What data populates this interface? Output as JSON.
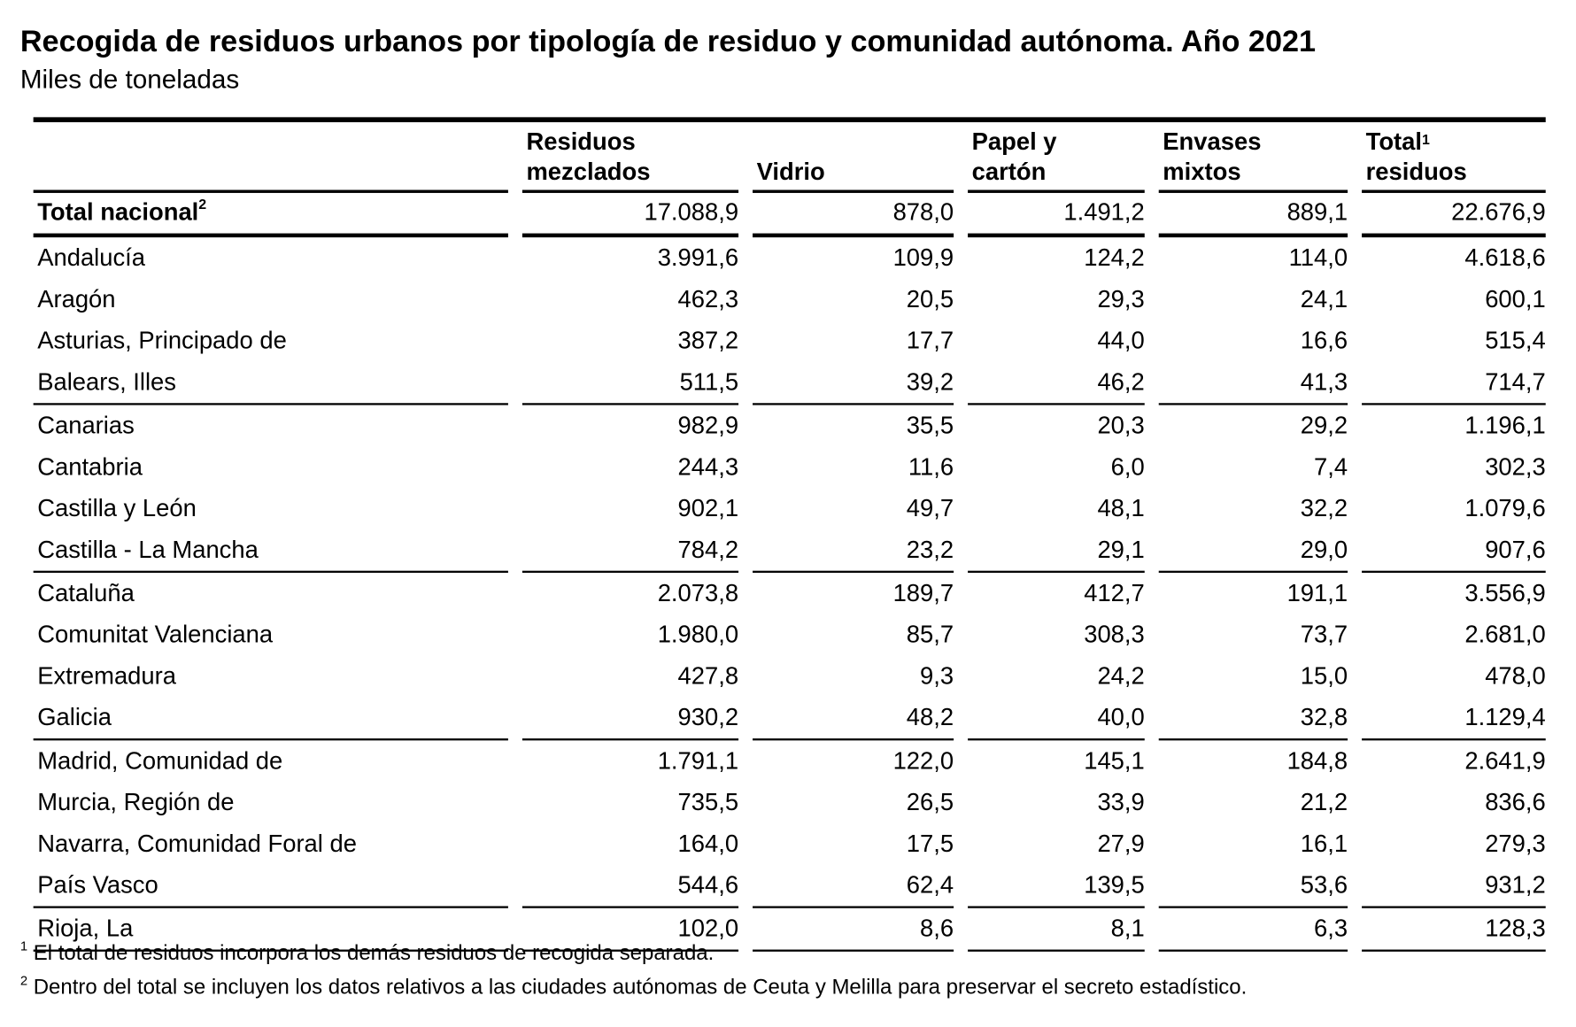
{
  "title": "Recogida de residuos urbanos por tipología de residuo y comunidad autónoma. Año 2021",
  "subtitle": "Miles de toneladas",
  "columns": [
    {
      "line1": "Residuos",
      "line2": "mezclados",
      "sup": ""
    },
    {
      "line1": "Vidrio",
      "line2": "",
      "sup": ""
    },
    {
      "line1": "Papel y",
      "line2": "cartón",
      "sup": ""
    },
    {
      "line1": "Envases",
      "line2": "mixtos",
      "sup": ""
    },
    {
      "line1": "Total",
      "line2": "residuos",
      "sup": "1"
    }
  ],
  "total": {
    "label": "Total nacional",
    "sup": "2",
    "values": [
      "17.088,9",
      "878,0",
      "1.491,2",
      "889,1",
      "22.676,9"
    ]
  },
  "rows": [
    {
      "label": "Andalucía",
      "values": [
        "3.991,6",
        "109,9",
        "124,2",
        "114,0",
        "4.618,6"
      ]
    },
    {
      "label": "Aragón",
      "values": [
        "462,3",
        "20,5",
        "29,3",
        "24,1",
        "600,1"
      ]
    },
    {
      "label": "Asturias, Principado de",
      "values": [
        "387,2",
        "17,7",
        "44,0",
        "16,6",
        "515,4"
      ]
    },
    {
      "label": "Balears, Illes",
      "values": [
        "511,5",
        "39,2",
        "46,2",
        "41,3",
        "714,7"
      ]
    },
    {
      "label": "Canarias",
      "values": [
        "982,9",
        "35,5",
        "20,3",
        "29,2",
        "1.196,1"
      ]
    },
    {
      "label": "Cantabria",
      "values": [
        "244,3",
        "11,6",
        "6,0",
        "7,4",
        "302,3"
      ]
    },
    {
      "label": "Castilla y León",
      "values": [
        "902,1",
        "49,7",
        "48,1",
        "32,2",
        "1.079,6"
      ]
    },
    {
      "label": "Castilla - La Mancha",
      "values": [
        "784,2",
        "23,2",
        "29,1",
        "29,0",
        "907,6"
      ]
    },
    {
      "label": "Cataluña",
      "values": [
        "2.073,8",
        "189,7",
        "412,7",
        "191,1",
        "3.556,9"
      ]
    },
    {
      "label": "Comunitat Valenciana",
      "values": [
        "1.980,0",
        "85,7",
        "308,3",
        "73,7",
        "2.681,0"
      ]
    },
    {
      "label": "Extremadura",
      "values": [
        "427,8",
        "9,3",
        "24,2",
        "15,0",
        "478,0"
      ]
    },
    {
      "label": "Galicia",
      "values": [
        "930,2",
        "48,2",
        "40,0",
        "32,8",
        "1.129,4"
      ]
    },
    {
      "label": "Madrid, Comunidad de",
      "values": [
        "1.791,1",
        "122,0",
        "145,1",
        "184,8",
        "2.641,9"
      ]
    },
    {
      "label": "Murcia, Región de",
      "values": [
        "735,5",
        "26,5",
        "33,9",
        "21,2",
        "836,6"
      ]
    },
    {
      "label": "Navarra, Comunidad Foral de",
      "values": [
        "164,0",
        "17,5",
        "27,9",
        "16,1",
        "279,3"
      ]
    },
    {
      "label": "País Vasco",
      "values": [
        "544,6",
        "62,4",
        "139,5",
        "53,6",
        "931,2"
      ]
    },
    {
      "label": "Rioja, La",
      "values": [
        "102,0",
        "8,6",
        "8,1",
        "6,3",
        "128,3"
      ]
    }
  ],
  "footnotes": [
    {
      "mark": "1",
      "text": "El total de residuos incorpora los demás residuos de recogida separada."
    },
    {
      "mark": "2",
      "text": "Dentro del total se incluyen los datos relativos a las ciudades autónomas de Ceuta y Melilla para preservar el secreto estadístico."
    }
  ]
}
